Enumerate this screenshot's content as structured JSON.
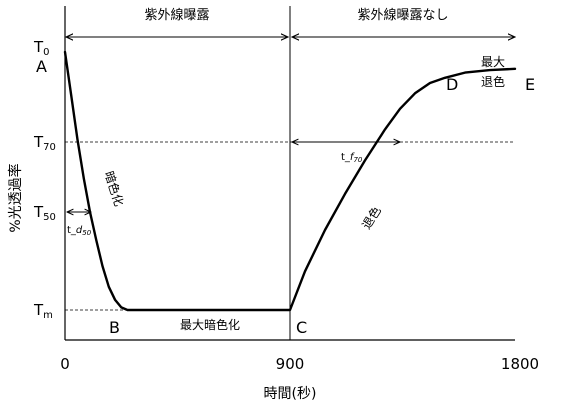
{
  "chart_data": {
    "type": "line",
    "title": "",
    "xlabel": "時間(秒)",
    "ylabel": "%光透過率",
    "xlim": [
      0,
      1800
    ],
    "ylim": [
      0,
      100
    ],
    "x_ticks": [
      "0",
      "900",
      "1800"
    ],
    "y_ticks": [
      {
        "base": "T",
        "sub": "0",
        "value": 100
      },
      {
        "base": "T",
        "sub": "70",
        "value": 66
      },
      {
        "base": "T",
        "sub": "50",
        "value": 38
      },
      {
        "base": "T",
        "sub": "m",
        "value": 0
      }
    ],
    "series": [
      {
        "name": "",
        "x": [
          0,
          25,
          50,
          75,
          100,
          125,
          150,
          175,
          200,
          225,
          250,
          300,
          400,
          500,
          600,
          700,
          800,
          900,
          960,
          1040,
          1120,
          1200,
          1280,
          1340,
          1400,
          1460,
          1520,
          1600,
          1700,
          1800
        ],
        "y": [
          100,
          83,
          66,
          51,
          38,
          27,
          17,
          9,
          4,
          1,
          0,
          0,
          0,
          0,
          0,
          0,
          0,
          0,
          15,
          31,
          45,
          58,
          70,
          78,
          84,
          88,
          90,
          92,
          93,
          93.5
        ]
      }
    ],
    "phases": [
      {
        "label": "紫外線曝露",
        "x_range": [
          0,
          900
        ]
      },
      {
        "label": "紫外線曝露なし",
        "x_range": [
          900,
          1800
        ]
      }
    ],
    "t_d50": {
      "label_prefix": "t_",
      "label_var": "d",
      "label_sub": "50",
      "x": [
        0,
        100
      ],
      "y": 38
    },
    "t_f70": {
      "label_prefix": "t_",
      "label_var": "f",
      "label_sub": "70",
      "x": [
        900,
        1360
      ],
      "y": 66
    },
    "point_labels": [
      "A",
      "B",
      "C",
      "D",
      "E"
    ],
    "annotations": {
      "darkening": "暗色化",
      "max_darkening": "最大暗色化",
      "fading": "退色",
      "max_fading_line1": "最大",
      "max_fading_line2": "退色"
    }
  }
}
